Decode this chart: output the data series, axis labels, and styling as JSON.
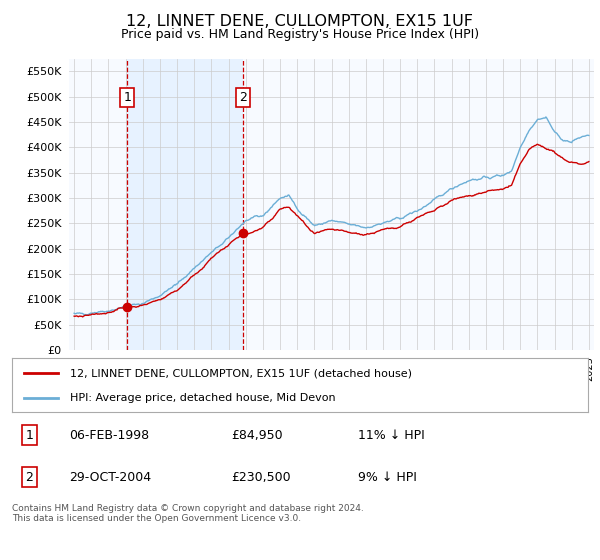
{
  "title": "12, LINNET DENE, CULLOMPTON, EX15 1UF",
  "subtitle": "Price paid vs. HM Land Registry's House Price Index (HPI)",
  "legend_line1": "12, LINNET DENE, CULLOMPTON, EX15 1UF (detached house)",
  "legend_line2": "HPI: Average price, detached house, Mid Devon",
  "sale1_date_label": "06-FEB-1998",
  "sale1_price": 84950,
  "sale1_hpi_note": "11% ↓ HPI",
  "sale2_date_label": "29-OCT-2004",
  "sale2_price": 230500,
  "sale2_hpi_note": "9% ↓ HPI",
  "sale1_year": 1998.1,
  "sale2_year": 2004.83,
  "footer": "Contains HM Land Registry data © Crown copyright and database right 2024.\nThis data is licensed under the Open Government Licence v3.0.",
  "ylim": [
    0,
    575000
  ],
  "yticks": [
    0,
    50000,
    100000,
    150000,
    200000,
    250000,
    300000,
    350000,
    400000,
    450000,
    500000,
    550000
  ],
  "hpi_color": "#6baed6",
  "price_color": "#cc0000",
  "dashed_color": "#cc0000",
  "shade_color": "#ddeeff",
  "plot_bg": "#f7faff",
  "grid_color": "#cccccc",
  "xlim_left": 1994.7,
  "xlim_right": 2025.3
}
